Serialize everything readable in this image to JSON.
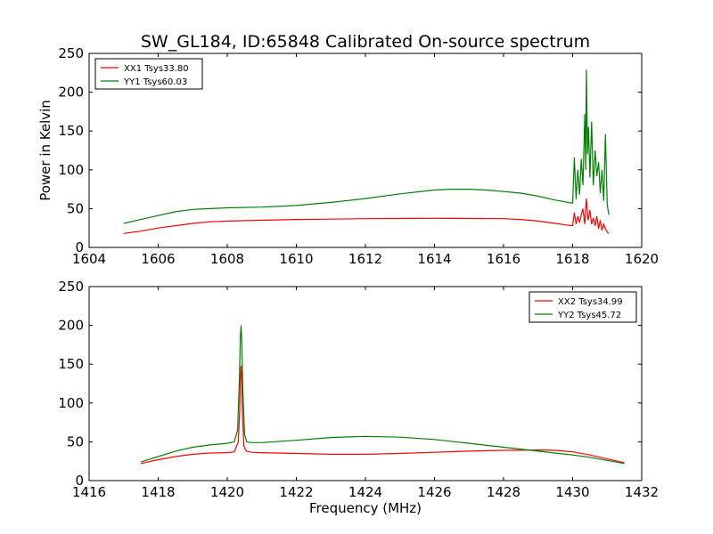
{
  "chart_data": [
    {
      "type": "line",
      "title": "SW_GL184, ID:65848 Calibrated On-source spectrum",
      "xlabel": "",
      "ylabel": "Power in Kelvin",
      "xlim": [
        1604,
        1620
      ],
      "ylim": [
        0,
        250
      ],
      "xticks": [
        1604,
        1606,
        1608,
        1610,
        1612,
        1614,
        1616,
        1618,
        1620
      ],
      "yticks": [
        0,
        50,
        100,
        150,
        200,
        250
      ],
      "grid": false,
      "legend_position": "top-left",
      "series": [
        {
          "name": "XX1 Tsys33.80",
          "color": "#ff0000",
          "x": [
            1605.0,
            1605.5,
            1606.0,
            1606.5,
            1607.0,
            1607.5,
            1608.0,
            1609.0,
            1610.0,
            1611.0,
            1612.0,
            1613.0,
            1614.0,
            1615.0,
            1616.0,
            1616.5,
            1617.0,
            1617.5,
            1617.8,
            1618.0,
            1618.05,
            1618.1,
            1618.15,
            1618.2,
            1618.25,
            1618.3,
            1618.35,
            1618.4,
            1618.45,
            1618.5,
            1618.55,
            1618.6,
            1618.65,
            1618.7,
            1618.75,
            1618.8,
            1618.85,
            1618.9,
            1618.95,
            1619.0,
            1619.05
          ],
          "y": [
            18,
            21,
            25,
            28,
            31,
            33,
            34,
            35,
            36,
            36.5,
            37,
            37.3,
            37.5,
            37.3,
            37,
            36,
            34,
            31,
            29,
            28,
            45,
            30,
            40,
            32,
            42,
            50,
            30,
            63,
            35,
            48,
            30,
            38,
            28,
            40,
            24,
            35,
            22,
            30,
            24,
            20,
            18
          ]
        },
        {
          "name": "YY1 Tsys60.03",
          "color": "#008000",
          "x": [
            1605.0,
            1605.5,
            1606.0,
            1606.5,
            1607.0,
            1607.5,
            1608.0,
            1609.0,
            1610.0,
            1611.0,
            1612.0,
            1613.0,
            1614.0,
            1614.5,
            1615.0,
            1615.5,
            1616.0,
            1616.5,
            1617.0,
            1617.5,
            1618.0,
            1618.05,
            1618.1,
            1618.15,
            1618.2,
            1618.25,
            1618.3,
            1618.35,
            1618.38,
            1618.4,
            1618.43,
            1618.46,
            1618.5,
            1618.55,
            1618.6,
            1618.65,
            1618.7,
            1618.75,
            1618.8,
            1618.85,
            1618.9,
            1618.95,
            1619.0,
            1619.05
          ],
          "y": [
            31,
            36,
            41,
            46,
            49,
            50,
            51,
            52,
            54,
            58,
            63,
            69,
            74,
            75,
            75,
            74,
            72,
            70,
            66,
            61,
            57,
            116,
            62,
            100,
            68,
            114,
            80,
            172,
            100,
            229,
            120,
            155,
            90,
            162,
            80,
            125,
            92,
            110,
            70,
            100,
            60,
            146,
            55,
            42
          ]
        }
      ]
    },
    {
      "type": "line",
      "title": "",
      "xlabel": "Frequency (MHz)",
      "ylabel": "",
      "xlim": [
        1416,
        1432
      ],
      "ylim": [
        0,
        250
      ],
      "xticks": [
        1416,
        1418,
        1420,
        1422,
        1424,
        1426,
        1428,
        1430,
        1432
      ],
      "yticks": [
        0,
        50,
        100,
        150,
        200,
        250
      ],
      "grid": false,
      "legend_position": "top-right",
      "series": [
        {
          "name": "XX2 Tsys34.99",
          "color": "#ff0000",
          "x": [
            1417.5,
            1418.0,
            1418.5,
            1419.0,
            1419.5,
            1420.0,
            1420.2,
            1420.32,
            1420.36,
            1420.38,
            1420.4,
            1420.42,
            1420.44,
            1420.48,
            1420.55,
            1420.7,
            1421.0,
            1422.0,
            1423.0,
            1424.0,
            1425.0,
            1426.0,
            1427.0,
            1428.0,
            1429.0,
            1429.5,
            1430.0,
            1430.5,
            1431.0,
            1431.5
          ],
          "y": [
            22,
            27,
            31,
            34,
            35.5,
            36,
            37,
            50,
            90,
            130,
            148,
            125,
            85,
            45,
            38,
            36.5,
            36,
            35,
            34,
            34,
            35,
            36.5,
            38,
            39,
            39.5,
            39,
            37,
            33,
            28,
            23
          ]
        },
        {
          "name": "YY2 Tsys45.72",
          "color": "#008000",
          "x": [
            1417.5,
            1418.0,
            1418.5,
            1419.0,
            1419.5,
            1420.0,
            1420.2,
            1420.3,
            1420.35,
            1420.38,
            1420.4,
            1420.42,
            1420.45,
            1420.5,
            1420.56,
            1420.7,
            1421.0,
            1422.0,
            1423.0,
            1424.0,
            1425.0,
            1426.0,
            1427.0,
            1428.0,
            1429.0,
            1430.0,
            1430.5,
            1431.0,
            1431.5
          ],
          "y": [
            24,
            31,
            38,
            43,
            46,
            48,
            50,
            65,
            130,
            185,
            200,
            180,
            120,
            60,
            50,
            49,
            49,
            52,
            55.5,
            57,
            56,
            53,
            48,
            43,
            38,
            33,
            30,
            26,
            22
          ]
        }
      ]
    }
  ]
}
